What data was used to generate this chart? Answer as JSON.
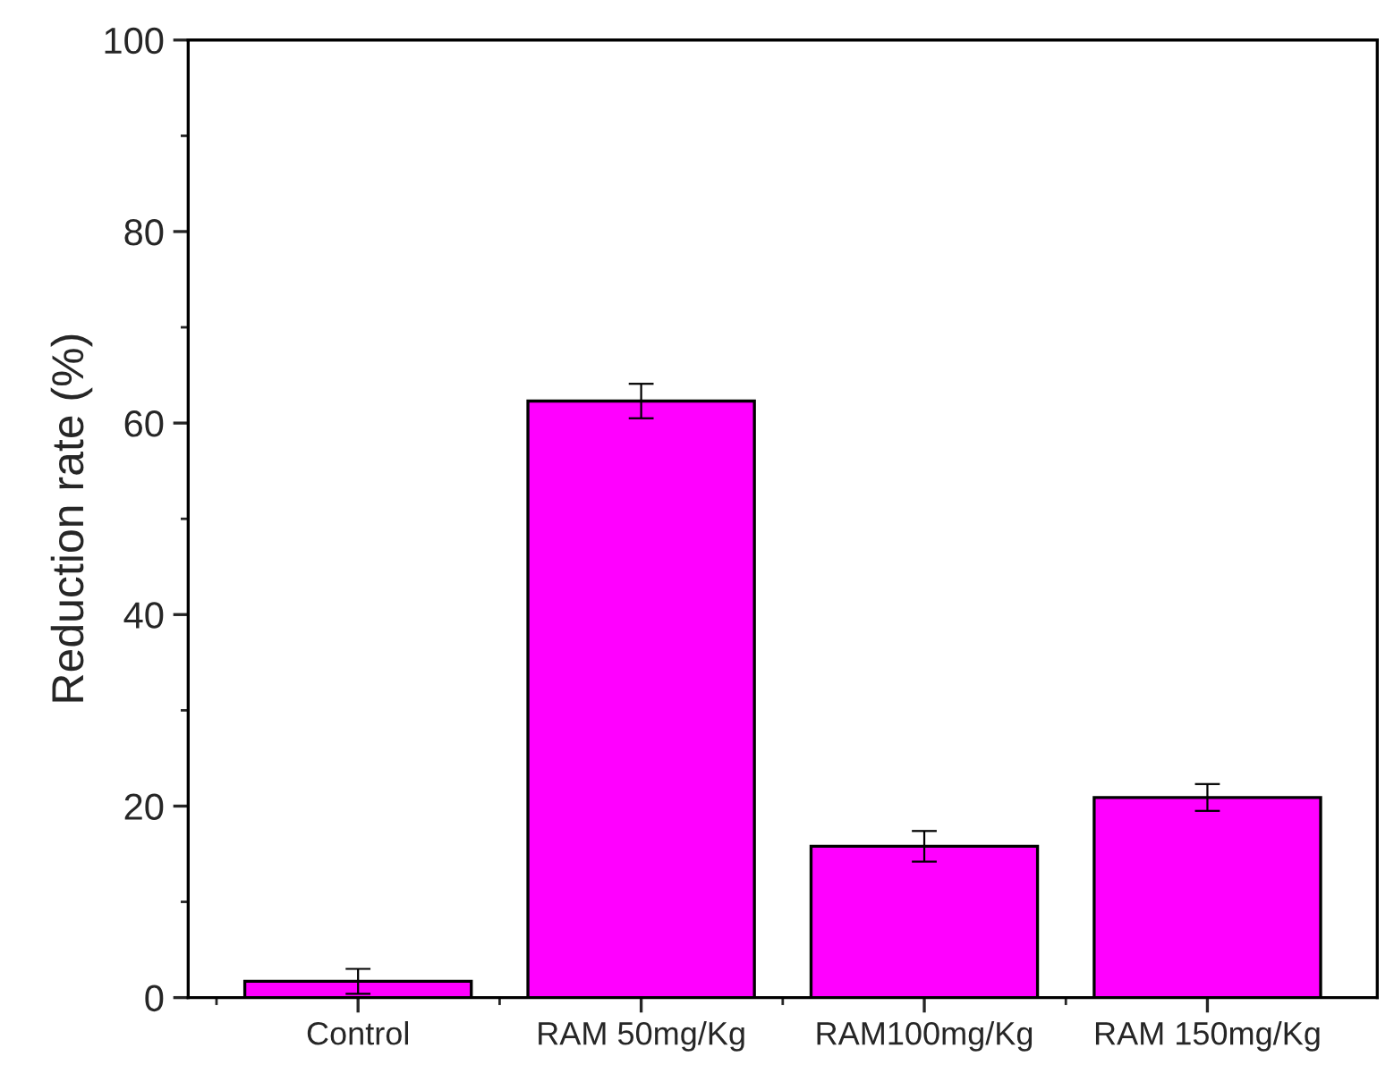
{
  "chart_data": {
    "type": "bar",
    "ylabel": "Reduction rate (%)",
    "categories": [
      "Control",
      "RAM 50mg/Kg",
      "RAM100mg/Kg",
      "RAM 150mg/Kg"
    ],
    "values": [
      1.7,
      62.3,
      15.8,
      20.9
    ],
    "errors": [
      1.3,
      1.8,
      1.6,
      1.4
    ],
    "color": "#ff00ff",
    "ylim": [
      0,
      100
    ],
    "yticks": [
      0,
      20,
      40,
      60,
      80,
      100
    ],
    "grid": false,
    "legend": false
  }
}
